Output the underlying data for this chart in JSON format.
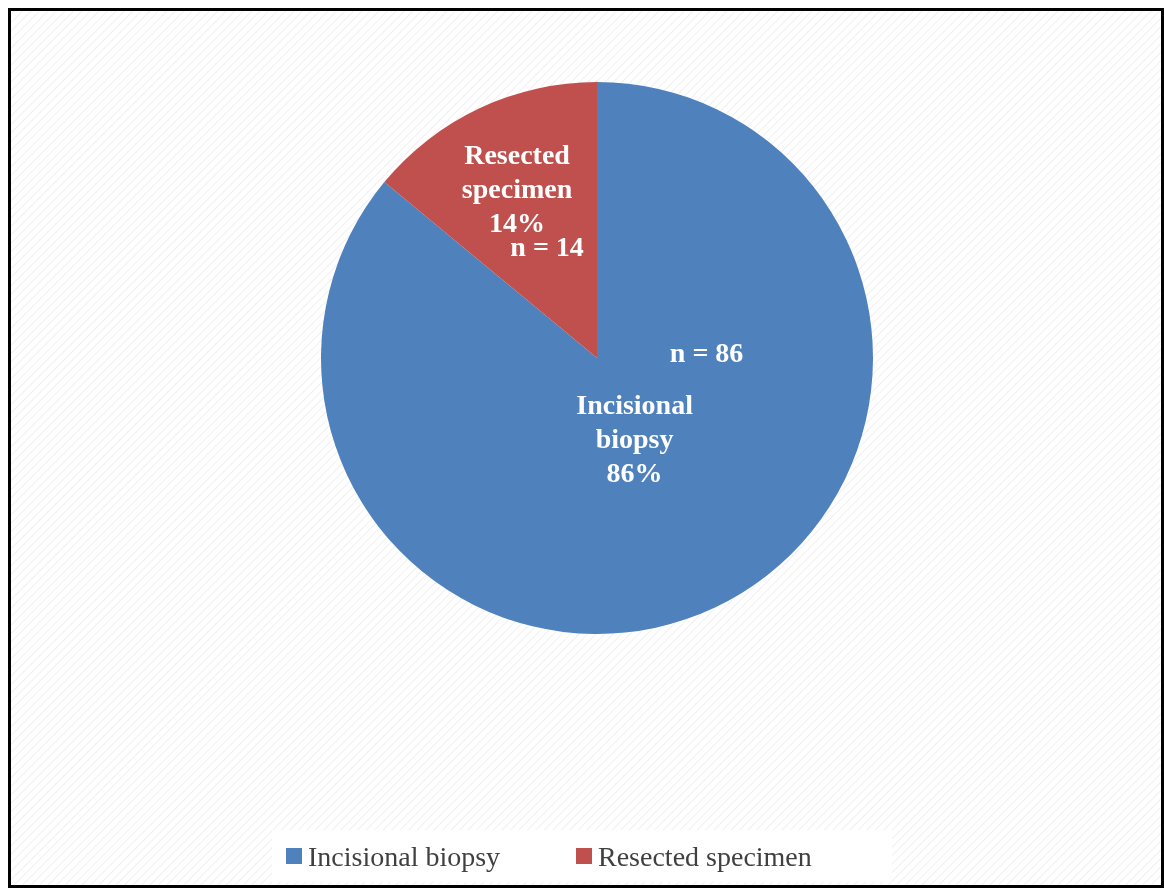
{
  "chart_data": {
    "type": "pie",
    "categories": [
      "Incisional biopsy",
      "Resected specimen"
    ],
    "values": [
      86,
      14
    ],
    "colors": [
      "#4f81bd",
      "#c0504d"
    ],
    "value_labels": [
      "86%",
      "14%"
    ],
    "annotations": [
      "n = 86",
      "n = 14"
    ],
    "legend": "bottom"
  }
}
